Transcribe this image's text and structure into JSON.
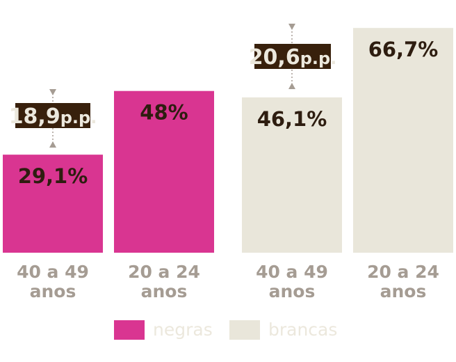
{
  "colors": {
    "negras": "#d93591",
    "brancas": "#e9e6da",
    "value_text": "#2e1d10",
    "category_text": "#a59c93",
    "diff_box": "#38200c",
    "diff_text": "#ece8dd",
    "arrow": "#a59c93",
    "legend_text": "#ece8dd"
  },
  "chart_data": {
    "type": "bar",
    "title": "",
    "xlabel": "",
    "ylabel": "",
    "ylim": [
      0,
      80
    ],
    "grid": false,
    "legend": "bottom",
    "categories": [
      "40 a 49 anos",
      "20 a 24 anos"
    ],
    "series": [
      {
        "name": "negras",
        "values": [
          29.1,
          48
        ],
        "labels": [
          "29,1%",
          "48%"
        ]
      },
      {
        "name": "brancas",
        "values": [
          46.1,
          66.7
        ],
        "labels": [
          "46,1%",
          "66,7%"
        ]
      }
    ],
    "annotations": [
      {
        "series": "negras",
        "text": "18,9p.p.",
        "from": 29.1,
        "to": 48
      },
      {
        "series": "brancas",
        "text": "20,6p.p.",
        "from": 46.1,
        "to": 66.7
      }
    ],
    "bars": [
      {
        "series": "negras",
        "label_line1": "40 a 49",
        "label_line2": "anos"
      },
      {
        "series": "negras",
        "label_line1": "20 a 24",
        "label_line2": "anos"
      },
      {
        "series": "brancas",
        "label_line1": "40 a 49",
        "label_line2": "anos"
      },
      {
        "series": "brancas",
        "label_line1": "20 a 24",
        "label_line2": "anos"
      }
    ]
  }
}
